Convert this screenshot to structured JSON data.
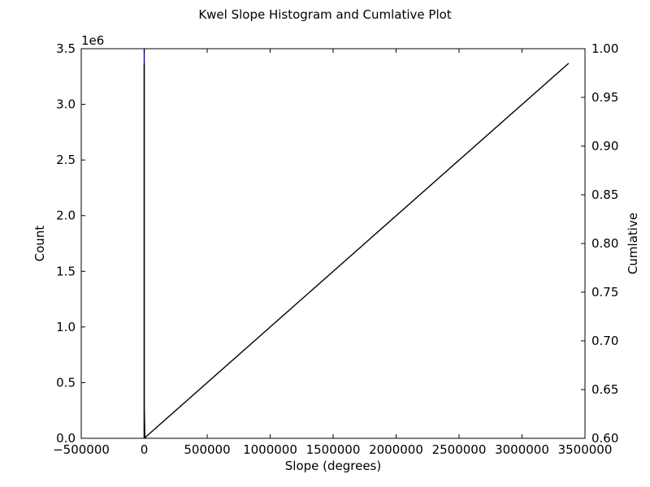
{
  "chart_data": {
    "type": "line",
    "title": "Kwel Slope Histogram and Cumlative Plot",
    "xlabel": "Slope (degrees)",
    "ylabel_left": "Count",
    "ylabel_right": "Cumlative",
    "y_offset_label": "1e6",
    "xlim": [
      -500000,
      3500000
    ],
    "ylim_left": [
      0,
      3.5
    ],
    "ylim_right": [
      0.6,
      1.0
    ],
    "x_ticks": [
      -500000,
      0,
      500000,
      1000000,
      1500000,
      2000000,
      2500000,
      3000000,
      3500000
    ],
    "x_tick_labels": [
      "−500000",
      "0",
      "500000",
      "1000000",
      "1500000",
      "2000000",
      "2500000",
      "3000000",
      "3500000"
    ],
    "y_left_ticks": [
      0,
      0.5,
      1.0,
      1.5,
      2.0,
      2.5,
      3.0,
      3.5
    ],
    "y_left_tick_labels": [
      "0.0",
      "0.5",
      "1.0",
      "1.5",
      "2.0",
      "2.5",
      "3.0",
      "3.5"
    ],
    "y_right_ticks": [
      0.6,
      0.65,
      0.7,
      0.75,
      0.8,
      0.85,
      0.9,
      0.95,
      1.0
    ],
    "y_right_tick_labels": [
      "0.60",
      "0.65",
      "0.70",
      "0.75",
      "0.80",
      "0.85",
      "0.90",
      "0.95",
      "1.00"
    ],
    "grid": false,
    "series": [
      {
        "axis": "left",
        "color": "#0000ff",
        "x": [
          0,
          0,
          0
        ],
        "y": [
          0,
          3.5,
          3.5
        ]
      },
      {
        "axis": "left",
        "color": "#000000",
        "x": [
          0,
          0,
          0,
          5000,
          10000
        ],
        "y": [
          0,
          3.37,
          0.3,
          0.02,
          0
        ]
      },
      {
        "axis": "right",
        "color": "#000000",
        "x": [
          0,
          3370000
        ],
        "y": [
          0.6,
          0.985
        ]
      }
    ]
  }
}
